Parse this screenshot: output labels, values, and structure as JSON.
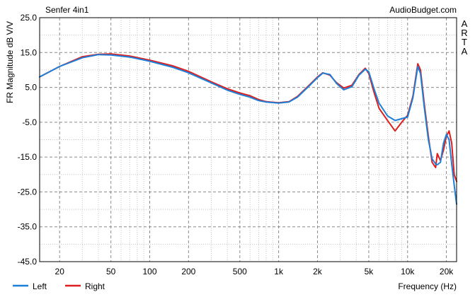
{
  "chart_data": {
    "type": "line",
    "title": "Senfer 4in1",
    "watermark": "AudioBudget.com",
    "side_label": [
      "A",
      "R",
      "T",
      "A"
    ],
    "xlabel": "Frequency (Hz)",
    "ylabel": "FR Magnitude dB V/V",
    "xscale": "log",
    "xlim": [
      14,
      24000
    ],
    "ylim": [
      -45,
      25
    ],
    "y_ticks": [
      25.0,
      15.0,
      5.0,
      -5.0,
      -15.0,
      -25.0,
      -35.0,
      -45.0
    ],
    "y_tick_labels": [
      "25.0",
      "15.0",
      "5.0",
      "-5.0",
      "-15.0",
      "-25.0",
      "-35.0",
      "-45.0"
    ],
    "x_ticks": [
      20,
      50,
      100,
      200,
      500,
      1000,
      2000,
      5000,
      10000,
      20000
    ],
    "x_tick_labels": [
      "20",
      "50",
      "100",
      "200",
      "500",
      "1k",
      "2k",
      "5k",
      "10k",
      "20k"
    ],
    "grid": true,
    "legend_position": "bottom-left",
    "series": [
      {
        "name": "Left",
        "color": "#1e7fd8",
        "x": [
          14,
          20,
          30,
          40,
          50,
          70,
          100,
          150,
          200,
          300,
          400,
          500,
          600,
          700,
          800,
          1000,
          1200,
          1400,
          1700,
          2000,
          2200,
          2500,
          2800,
          3200,
          3700,
          4200,
          4700,
          5000,
          5500,
          6000,
          7000,
          8000,
          9000,
          10000,
          11000,
          12000,
          12600,
          13500,
          14500,
          15500,
          16500,
          17000,
          18000,
          19000,
          20000,
          21000,
          22000,
          23000,
          24000
        ],
        "y": [
          8.0,
          11.0,
          13.5,
          14.4,
          14.3,
          13.7,
          12.5,
          10.8,
          9.2,
          6.3,
          4.2,
          3.0,
          2.2,
          1.2,
          0.8,
          0.5,
          0.8,
          2.2,
          5.2,
          7.8,
          9.1,
          8.7,
          6.2,
          4.3,
          5.2,
          8.5,
          10.2,
          9.5,
          4.5,
          0.5,
          -3.2,
          -4.5,
          -4.0,
          -3.5,
          2.0,
          11.0,
          9.0,
          -1.0,
          -10.0,
          -15.5,
          -17.0,
          -17.2,
          -16.5,
          -11.0,
          -8.5,
          -10.0,
          -17.0,
          -23.0,
          -28.5
        ]
      },
      {
        "name": "Right",
        "color": "#dd1e1e",
        "x": [
          14,
          20,
          30,
          40,
          50,
          70,
          100,
          150,
          200,
          300,
          400,
          500,
          600,
          700,
          800,
          1000,
          1200,
          1400,
          1700,
          2000,
          2200,
          2500,
          2800,
          3200,
          3700,
          4200,
          4700,
          5000,
          5500,
          6000,
          7000,
          8000,
          9000,
          10000,
          11000,
          12000,
          12600,
          13500,
          14500,
          15500,
          16500,
          17000,
          18000,
          19000,
          20000,
          21000,
          22000,
          23000,
          24000
        ],
        "y": [
          8.0,
          11.0,
          13.8,
          14.5,
          14.6,
          14.0,
          12.8,
          11.2,
          9.6,
          6.6,
          4.6,
          3.4,
          2.6,
          1.5,
          0.9,
          0.6,
          0.9,
          2.4,
          5.4,
          8.0,
          9.2,
          8.5,
          6.4,
          4.8,
          5.6,
          8.7,
          10.5,
          9.0,
          3.5,
          -1.0,
          -4.5,
          -7.5,
          -5.0,
          -3.0,
          2.5,
          11.8,
          10.0,
          0.0,
          -9.0,
          -16.5,
          -18.0,
          -14.0,
          -16.0,
          -13.0,
          -9.0,
          -7.5,
          -11.0,
          -20.0,
          -22.0
        ]
      }
    ]
  }
}
